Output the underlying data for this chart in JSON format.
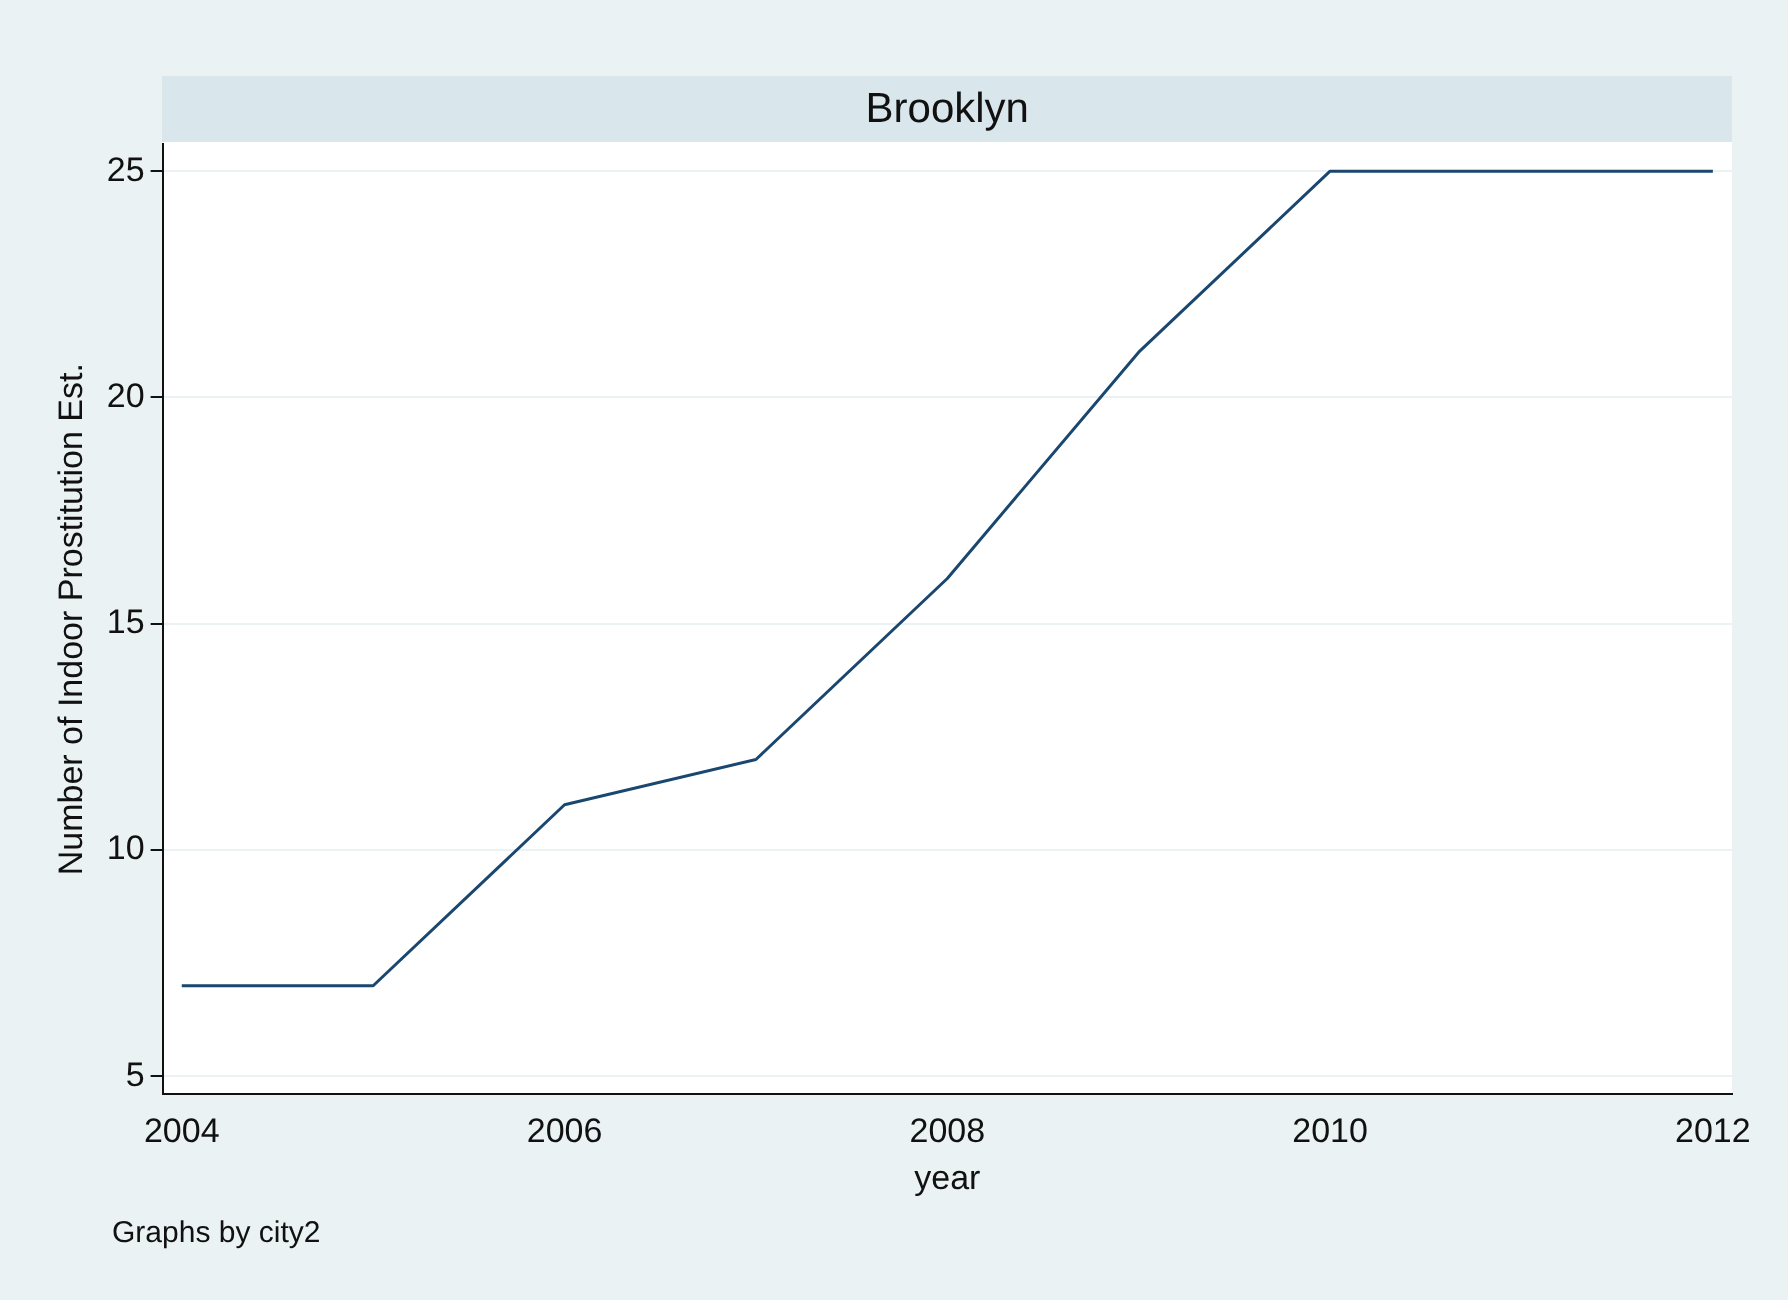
{
  "chart_data": {
    "type": "line",
    "title": "Brooklyn",
    "xlabel": "year",
    "ylabel": "Number of Indoor Prostitution Est.",
    "x": [
      2004,
      2005,
      2006,
      2007,
      2008,
      2009,
      2010,
      2011,
      2012
    ],
    "series": [
      {
        "color": "#1a476f",
        "values": [
          7,
          7,
          11,
          12,
          16,
          21,
          25,
          25,
          25
        ]
      }
    ],
    "xlim": [
      2003.9,
      2012.1
    ],
    "xticks": [
      2004,
      2006,
      2008,
      2010,
      2012
    ],
    "ylim": [
      4.6,
      25.6
    ],
    "yticks": [
      5,
      10,
      15,
      20,
      25
    ],
    "grid": "y",
    "legend": false,
    "marker": "none",
    "line_style": "solid",
    "annotations": [
      "Graphs by city2"
    ]
  }
}
